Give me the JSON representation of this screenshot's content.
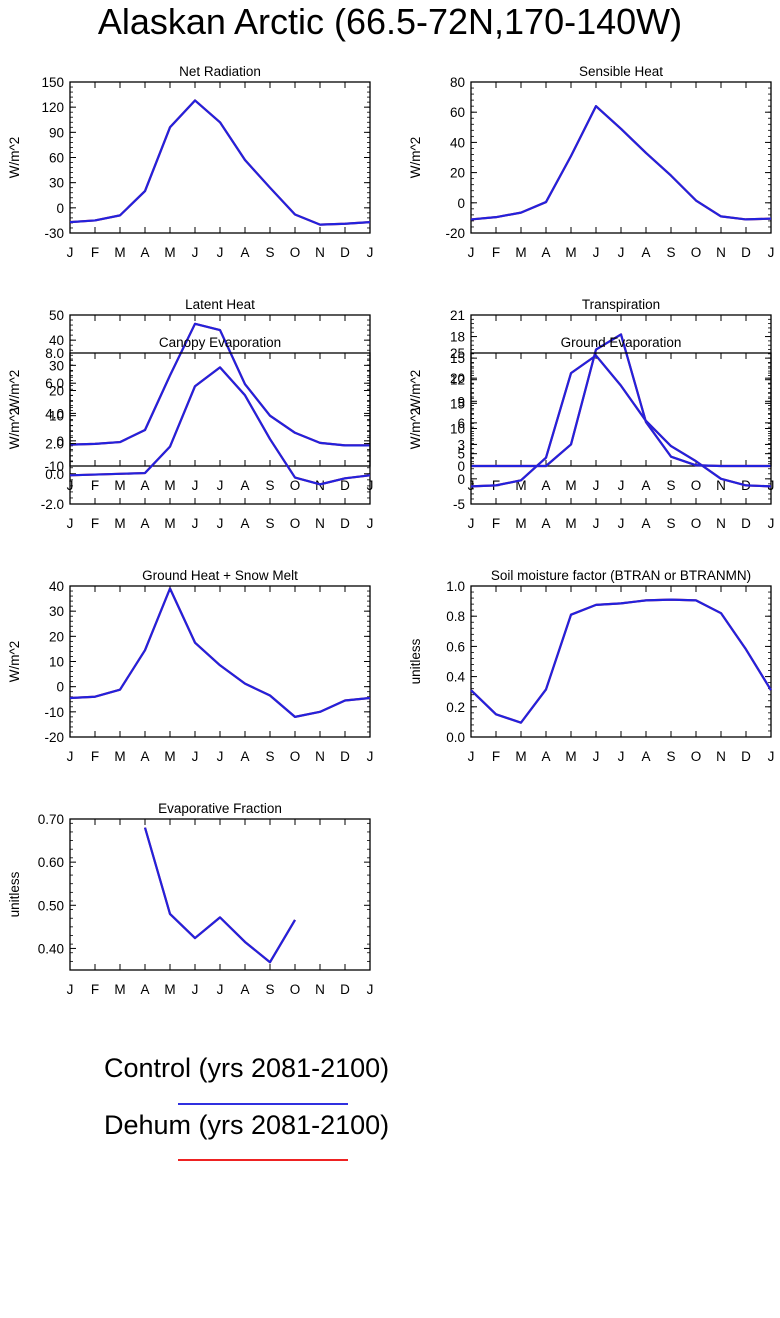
{
  "page_title": "Alaskan Arctic (66.5-72N,170-140W)",
  "colors": {
    "control": "#2222dd",
    "dehum": "#ee2222",
    "axis": "#000000"
  },
  "legend": [
    {
      "label": "Control (yrs 2081-2100)",
      "color": "#3030e0"
    },
    {
      "label": "Dehum (yrs 2081-2100)",
      "color": "#ee2222"
    }
  ],
  "chart_data": [
    {
      "type": "line",
      "title": "Net Radiation",
      "ylabel": "W/m^2",
      "categories": [
        "J",
        "F",
        "M",
        "A",
        "M",
        "J",
        "J",
        "A",
        "S",
        "O",
        "N",
        "D",
        "J"
      ],
      "ylim": [
        -30,
        150
      ],
      "yticks": [
        -30,
        0,
        30,
        60,
        90,
        120,
        150
      ],
      "ytick_labels": [
        "-30",
        "0",
        "30",
        "60",
        "90",
        "120",
        "150"
      ],
      "series": [
        {
          "name": "Control",
          "values": [
            -17,
            -15,
            -9,
            20,
            96,
            128,
            102,
            57,
            24,
            -8,
            -20,
            -19,
            -17
          ]
        },
        {
          "name": "Dehum",
          "values": [
            -17,
            -15,
            -9,
            20,
            96,
            128,
            102,
            57,
            24,
            -8,
            -20,
            -19,
            -17
          ]
        }
      ]
    },
    {
      "type": "line",
      "title": "Sensible Heat",
      "ylabel": "W/m^2",
      "categories": [
        "J",
        "F",
        "M",
        "A",
        "M",
        "J",
        "J",
        "A",
        "S",
        "O",
        "N",
        "D",
        "J"
      ],
      "ylim": [
        -20,
        80
      ],
      "yticks": [
        -20,
        0,
        20,
        40,
        60,
        80
      ],
      "ytick_labels": [
        "-20",
        "0",
        "20",
        "40",
        "60",
        "80"
      ],
      "series": [
        {
          "name": "Control",
          "values": [
            -11,
            -9.5,
            -6.5,
            0.5,
            31,
            64,
            49,
            33,
            18,
            1.5,
            -9,
            -11,
            -10.5
          ]
        },
        {
          "name": "Dehum",
          "values": [
            -11,
            -9.5,
            -6.5,
            0.5,
            31,
            64,
            49,
            33,
            18,
            1.5,
            -9,
            -11,
            -10.5
          ]
        }
      ]
    },
    {
      "type": "line",
      "title": "Latent Heat",
      "ylabel": "W/m^2",
      "categories": [
        "J",
        "F",
        "M",
        "A",
        "M",
        "J",
        "J",
        "A",
        "S",
        "O",
        "N",
        "D",
        "J"
      ],
      "ylim": [
        -10,
        50
      ],
      "yticks": [
        -10,
        0,
        10,
        20,
        30,
        40,
        50
      ],
      "ytick_labels": [
        "-10",
        "0",
        "10",
        "20",
        "30",
        "40",
        "50"
      ],
      "series": [
        {
          "name": "Control",
          "values": [
            -1.5,
            -1.2,
            -0.5,
            4.3,
            26,
            46.5,
            44,
            22.5,
            10,
            3.2,
            -0.8,
            -1.8,
            -1.8
          ]
        },
        {
          "name": "Dehum",
          "values": [
            -1.5,
            -1.2,
            -0.5,
            4.3,
            26,
            46.5,
            44,
            22.5,
            10,
            3.2,
            -0.8,
            -1.8,
            -1.8
          ]
        }
      ]
    },
    {
      "type": "line",
      "title": "Transpiration",
      "ylabel": "W/m^2",
      "categories": [
        "J",
        "F",
        "M",
        "A",
        "M",
        "J",
        "J",
        "A",
        "S",
        "O",
        "N",
        "D",
        "J"
      ],
      "ylim": [
        0,
        21
      ],
      "yticks": [
        0,
        3,
        6,
        9,
        12,
        15,
        18,
        21
      ],
      "ytick_labels": [
        "0",
        "3",
        "6",
        "9",
        "12",
        "15",
        "18",
        "21"
      ],
      "series": [
        {
          "name": "Control",
          "values": [
            0,
            0,
            0,
            0,
            3,
            16.2,
            18.3,
            6.1,
            1.3,
            0.1,
            0,
            0,
            0
          ]
        },
        {
          "name": "Dehum",
          "values": [
            0,
            0,
            0,
            0,
            3,
            16.2,
            18.3,
            6.1,
            1.3,
            0.1,
            0,
            0,
            0
          ]
        }
      ]
    },
    {
      "type": "line",
      "title": "Canopy Evaporation",
      "ylabel": "W/m^2",
      "categories": [
        "J",
        "F",
        "M",
        "A",
        "M",
        "J",
        "J",
        "A",
        "S",
        "O",
        "N",
        "D",
        "J"
      ],
      "ylim": [
        -2,
        8
      ],
      "yticks": [
        -2,
        0,
        2,
        4,
        6,
        8
      ],
      "ytick_labels": [
        "-2.0",
        "0.0",
        "2.0",
        "4.0",
        "6.0",
        "8.0"
      ],
      "series": [
        {
          "name": "Control",
          "values": [
            -0.1,
            -0.05,
            0,
            0.05,
            1.8,
            5.8,
            7.05,
            5.2,
            2.3,
            -0.25,
            -0.7,
            -0.3,
            -0.1
          ]
        },
        {
          "name": "Dehum",
          "values": [
            -0.1,
            -0.05,
            0,
            0.05,
            1.8,
            5.8,
            7.05,
            5.2,
            2.3,
            -0.25,
            -0.7,
            -0.3,
            -0.1
          ]
        }
      ]
    },
    {
      "type": "line",
      "title": "Ground Evaporation",
      "ylabel": "W/m^2",
      "categories": [
        "J",
        "F",
        "M",
        "A",
        "M",
        "J",
        "J",
        "A",
        "S",
        "O",
        "N",
        "D",
        "J"
      ],
      "ylim": [
        -5,
        25
      ],
      "yticks": [
        -5,
        0,
        5,
        10,
        15,
        20,
        25
      ],
      "ytick_labels": [
        "-5",
        "0",
        "5",
        "10",
        "15",
        "20",
        "25"
      ],
      "series": [
        {
          "name": "Control",
          "values": [
            -1.5,
            -1.3,
            -0.3,
            4.2,
            21,
            24.5,
            18.5,
            11.5,
            6.5,
            3.5,
            0,
            -1.3,
            -1.5
          ]
        },
        {
          "name": "Dehum",
          "values": [
            -1.5,
            -1.3,
            -0.3,
            4.2,
            21,
            24.5,
            18.5,
            11.5,
            6.5,
            3.5,
            0,
            -1.3,
            -1.5
          ]
        }
      ]
    },
    {
      "type": "line",
      "title": "Ground Heat + Snow Melt",
      "ylabel": "W/m^2",
      "categories": [
        "J",
        "F",
        "M",
        "A",
        "M",
        "J",
        "J",
        "A",
        "S",
        "O",
        "N",
        "D",
        "J"
      ],
      "ylim": [
        -20,
        40
      ],
      "yticks": [
        -20,
        -10,
        0,
        10,
        20,
        30,
        40
      ],
      "ytick_labels": [
        "-20",
        "-10",
        "0",
        "10",
        "20",
        "30",
        "40"
      ],
      "series": [
        {
          "name": "Control",
          "values": [
            -4.5,
            -4,
            -1.2,
            14.5,
            39,
            17.5,
            8.5,
            1.2,
            -3.5,
            -12,
            -10,
            -5.5,
            -4.5
          ]
        },
        {
          "name": "Dehum",
          "values": [
            -4.5,
            -4,
            -1.2,
            14.5,
            39,
            17.5,
            8.5,
            1.2,
            -3.5,
            -12,
            -10,
            -5.5,
            -4.5
          ]
        }
      ]
    },
    {
      "type": "line",
      "title": "Soil moisture factor (BTRAN or BTRANMN)",
      "ylabel": "unitless",
      "categories": [
        "J",
        "F",
        "M",
        "A",
        "M",
        "J",
        "J",
        "A",
        "S",
        "O",
        "N",
        "D",
        "J"
      ],
      "ylim": [
        0,
        1
      ],
      "yticks": [
        0,
        0.2,
        0.4,
        0.6,
        0.8,
        1.0
      ],
      "ytick_labels": [
        "0.0",
        "0.2",
        "0.4",
        "0.6",
        "0.8",
        "1.0"
      ],
      "series": [
        {
          "name": "Control",
          "values": [
            0.31,
            0.15,
            0.095,
            0.315,
            0.81,
            0.875,
            0.885,
            0.905,
            0.91,
            0.905,
            0.82,
            0.58,
            0.31
          ]
        },
        {
          "name": "Dehum",
          "values": [
            0.31,
            0.15,
            0.095,
            0.315,
            0.81,
            0.875,
            0.885,
            0.905,
            0.91,
            0.905,
            0.82,
            0.58,
            0.31
          ]
        }
      ]
    },
    {
      "type": "line",
      "title": "Evaporative Fraction",
      "ylabel": "unitless",
      "categories": [
        "J",
        "F",
        "M",
        "A",
        "M",
        "J",
        "J",
        "A",
        "S",
        "O",
        "N",
        "D",
        "J"
      ],
      "ylim": [
        0.35,
        0.7
      ],
      "yticks": [
        0.4,
        0.5,
        0.6,
        0.7
      ],
      "ytick_labels": [
        "0.40",
        "0.50",
        "0.60",
        "0.70"
      ],
      "series": [
        {
          "name": "Control",
          "values": [
            null,
            null,
            null,
            0.68,
            0.48,
            0.424,
            0.472,
            0.415,
            0.368,
            0.466,
            null,
            null,
            null
          ]
        },
        {
          "name": "Dehum",
          "values": [
            null,
            null,
            null,
            0.68,
            0.48,
            0.424,
            0.472,
            0.415,
            0.368,
            0.466,
            null,
            null,
            null
          ]
        }
      ]
    }
  ]
}
